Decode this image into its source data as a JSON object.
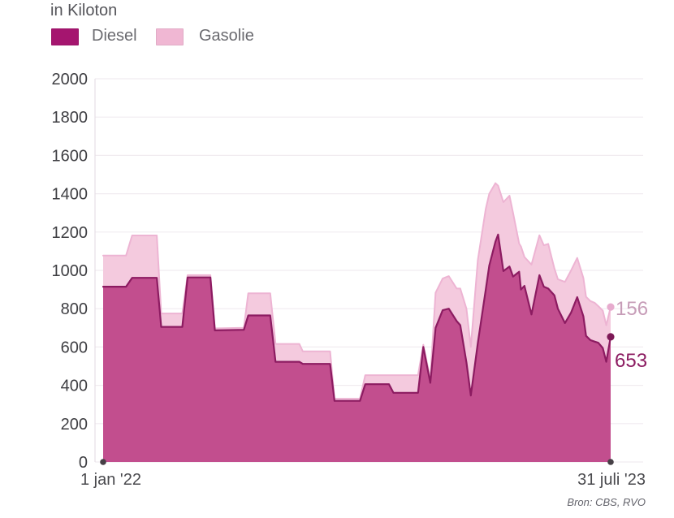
{
  "title": "in Kiloton",
  "legend": {
    "items": [
      {
        "label": "Diesel",
        "color": "#a5156f"
      },
      {
        "label": "Gasolie",
        "color": "#f0b7d3"
      }
    ]
  },
  "x_axis": {
    "start": "1 jan '22",
    "end": "31 juli '23"
  },
  "end_labels": {
    "gasolie": "156",
    "diesel": "653"
  },
  "source": "Bron: CBS, RVO",
  "colors": {
    "diesel_fill": "#c24e8e",
    "diesel_stroke": "#8c1b61",
    "gasolie_fill": "#f4cade",
    "gasolie_stroke": "#edb4d3",
    "grid": "#f1ecf0",
    "axis": "#e7dfe6",
    "tick_text": "#3e3e42",
    "baseline_dot": "#464046",
    "end_dot_diesel": "#7d1856",
    "end_dot_gasolie": "#e7abce"
  },
  "chart_data": {
    "type": "area",
    "stacked": true,
    "title": "in Kiloton",
    "series_names": [
      "Diesel",
      "Gasolie"
    ],
    "legend_position": "top-left",
    "grid": true,
    "x_unit": "days since 1 jan 2022",
    "x_range": [
      0,
      577
    ],
    "x_tick_labels": [
      "1 jan '22",
      "31 juli '23"
    ],
    "ylim": [
      0,
      2000
    ],
    "y_ticks": [
      0,
      200,
      400,
      600,
      800,
      1000,
      1200,
      1400,
      1600,
      1800,
      2000
    ],
    "final_values": {
      "diesel": 653,
      "gasolie": 156
    },
    "points_format": [
      "day",
      "diesel",
      "gasolie"
    ],
    "points": [
      [
        0,
        915,
        162
      ],
      [
        26,
        915,
        162
      ],
      [
        33,
        961,
        221
      ],
      [
        61,
        961,
        221
      ],
      [
        66,
        705,
        70
      ],
      [
        90,
        705,
        70
      ],
      [
        96,
        963,
        12
      ],
      [
        122,
        963,
        12
      ],
      [
        127,
        687,
        10
      ],
      [
        160,
        690,
        10
      ],
      [
        165,
        765,
        115
      ],
      [
        190,
        765,
        115
      ],
      [
        196,
        523,
        93
      ],
      [
        223,
        523,
        93
      ],
      [
        227,
        512,
        65
      ],
      [
        258,
        512,
        65
      ],
      [
        263,
        319,
        11
      ],
      [
        292,
        319,
        11
      ],
      [
        298,
        406,
        47
      ],
      [
        325,
        406,
        47
      ],
      [
        330,
        361,
        92
      ],
      [
        358,
        361,
        92
      ],
      [
        364,
        600,
        12
      ],
      [
        372,
        413,
        20
      ],
      [
        378,
        700,
        183
      ],
      [
        386,
        792,
        165
      ],
      [
        393,
        800,
        170
      ],
      [
        402,
        735,
        170
      ],
      [
        406,
        714,
        191
      ],
      [
        413,
        520,
        280
      ],
      [
        418,
        347,
        254
      ],
      [
        426,
        620,
        433
      ],
      [
        435,
        900,
        421
      ],
      [
        439,
        1025,
        375
      ],
      [
        446,
        1150,
        305
      ],
      [
        449,
        1187,
        255
      ],
      [
        455,
        996,
        360
      ],
      [
        462,
        1020,
        370
      ],
      [
        466,
        968,
        332
      ],
      [
        473,
        993,
        147
      ],
      [
        475,
        900,
        225
      ],
      [
        479,
        919,
        151
      ],
      [
        487,
        770,
        260
      ],
      [
        496,
        975,
        208
      ],
      [
        501,
        915,
        216
      ],
      [
        506,
        905,
        233
      ],
      [
        513,
        870,
        140
      ],
      [
        517,
        800,
        154
      ],
      [
        525,
        725,
        215
      ],
      [
        532,
        780,
        220
      ],
      [
        539,
        860,
        205
      ],
      [
        546,
        760,
        200
      ],
      [
        549,
        658,
        204
      ],
      [
        554,
        636,
        204
      ],
      [
        559,
        628,
        202
      ],
      [
        563,
        622,
        191
      ],
      [
        568,
        595,
        195
      ],
      [
        572,
        523,
        191
      ],
      [
        577,
        653,
        156
      ]
    ]
  }
}
